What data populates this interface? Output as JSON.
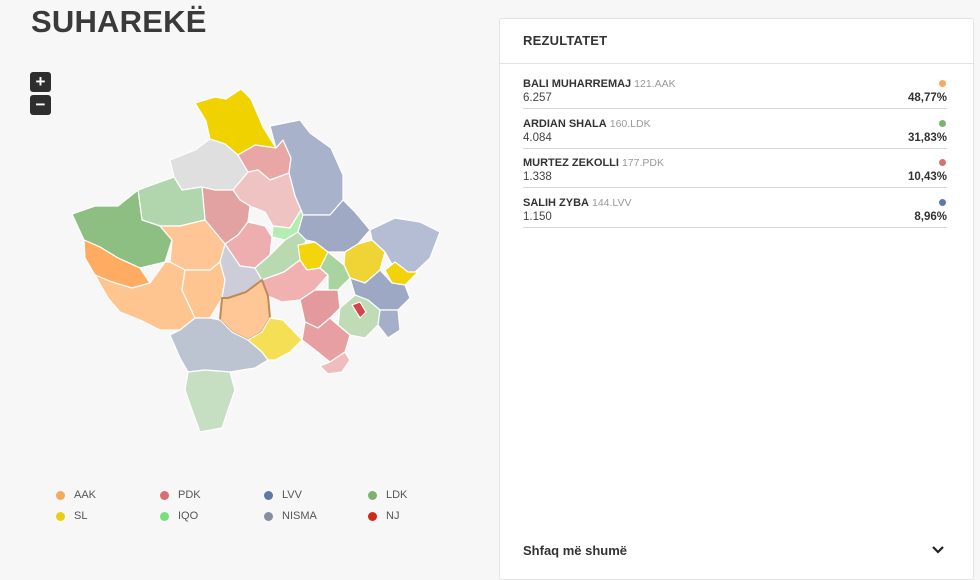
{
  "title": "SUHAREKË",
  "zoom": {
    "in_label": "+",
    "out_label": "−"
  },
  "legend": [
    {
      "label": "AAK",
      "color": "#f5a95e"
    },
    {
      "label": "PDK",
      "color": "#d97070"
    },
    {
      "label": "LVV",
      "color": "#5e79a8"
    },
    {
      "label": "LDK",
      "color": "#7bb36e"
    },
    {
      "label": "SL",
      "color": "#e9cf12"
    },
    {
      "label": "IQO",
      "color": "#79e07c"
    },
    {
      "label": "NISMA",
      "color": "#8a8ca0"
    },
    {
      "label": "NJ",
      "color": "#d02a1a"
    }
  ],
  "results": {
    "header": "REZULTATET",
    "candidates": [
      {
        "name": "BALI MUHARREMAJ",
        "tag": "121.AAK",
        "votes": "6.257",
        "percent": "48,77%",
        "color": "#f5a95e"
      },
      {
        "name": "ARDIAN SHALA",
        "tag": "160.LDK",
        "votes": "4.084",
        "percent": "31,83%",
        "color": "#7bb36e"
      },
      {
        "name": "MURTEZ ZEKOLLI",
        "tag": "177.PDK",
        "votes": "1.338",
        "percent": "10,43%",
        "color": "#d97070"
      },
      {
        "name": "SALIH ZYBA",
        "tag": "144.LVV",
        "votes": "1.150",
        "percent": "8,96%",
        "color": "#5e79a8"
      }
    ],
    "show_more": "Shfaq më shumë",
    "chevron_icon": "chevron-down-icon"
  }
}
